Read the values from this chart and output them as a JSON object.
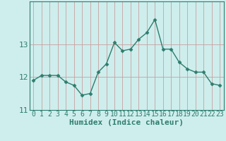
{
  "x": [
    0,
    1,
    2,
    3,
    4,
    5,
    6,
    7,
    8,
    9,
    10,
    11,
    12,
    13,
    14,
    15,
    16,
    17,
    18,
    19,
    20,
    21,
    22,
    23
  ],
  "y": [
    11.9,
    12.05,
    12.05,
    12.05,
    11.85,
    11.75,
    11.45,
    11.5,
    12.15,
    12.4,
    13.05,
    12.8,
    12.85,
    13.15,
    13.35,
    13.75,
    12.85,
    12.85,
    12.45,
    12.25,
    12.15,
    12.15,
    11.8,
    11.75
  ],
  "line_color": "#2e7d6e",
  "marker": "D",
  "marker_size": 2.5,
  "bg_color": "#ceeeed",
  "grid_h_color": "#c8a0a0",
  "grid_v_color": "#c8a0a0",
  "ylim": [
    11.0,
    14.3
  ],
  "yticks": [
    11,
    12,
    13
  ],
  "xlabel": "Humidex (Indice chaleur)",
  "xlabel_fontsize": 8,
  "tick_fontsize": 8,
  "figsize": [
    3.2,
    2.0
  ],
  "dpi": 100
}
